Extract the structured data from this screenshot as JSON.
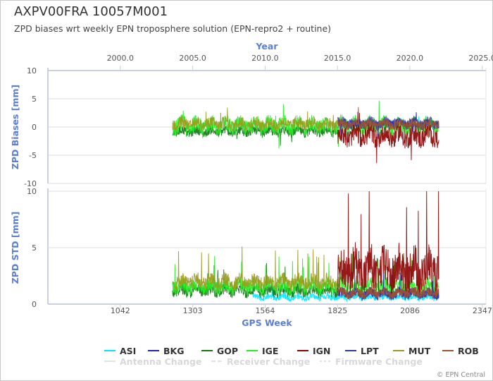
{
  "title": "AXPV00FRA 10057M001",
  "subtitle": "ZPD biases wrt weekly EPN troposphere solution (EPN-repro2 + routine)",
  "credit": "© EPN Central",
  "chart_data": [
    {
      "type": "line",
      "panel": "biases",
      "ylabel": "ZPD Biases [mm]",
      "ylim": [
        -10,
        10
      ],
      "yticks": [
        -10,
        -5,
        0,
        5,
        10
      ],
      "xlabel_top": "Year",
      "x_top_ticks": [
        "2000.0",
        "2005.0",
        "2010.0",
        "2015.0",
        "2020.0",
        "2025.0"
      ],
      "x_top_values": [
        2000.0,
        2005.0,
        2010.0,
        2015.0,
        2020.0,
        2025.0
      ],
      "xlim_gps_week": [
        781,
        2360
      ],
      "series": [
        {
          "name": "ASI",
          "color": "#00e5ff",
          "x_range": [
            1825,
            2190
          ],
          "mean": 0.4,
          "noise": 0.6
        },
        {
          "name": "BKG",
          "color": "#2222bb",
          "x_range": [
            1825,
            2190
          ],
          "mean": 0.6,
          "noise": 0.8
        },
        {
          "name": "GOP",
          "color": "#117711",
          "x_range": [
            1230,
            1825
          ],
          "mean": -0.8,
          "noise": 0.8
        },
        {
          "name": "IGE",
          "color": "#22ee22",
          "x_range": [
            1230,
            2190
          ],
          "mean": 0.3,
          "noise": 1.4
        },
        {
          "name": "IGN",
          "color": "#8b0000",
          "x_range": [
            1825,
            2190
          ],
          "mean": -1.5,
          "noise": 1.8
        },
        {
          "name": "LPT",
          "color": "#3333aa",
          "x_range": [
            1825,
            2190
          ],
          "mean": 0.7,
          "noise": 0.9
        },
        {
          "name": "MUT",
          "color": "#9a9a1a",
          "x_range": [
            1230,
            1825
          ],
          "mean": 0.6,
          "noise": 1.0
        },
        {
          "name": "ROB",
          "color": "#a0522d",
          "x_range": [
            1825,
            2190
          ],
          "mean": 0.5,
          "noise": 0.8
        }
      ]
    },
    {
      "type": "line",
      "panel": "std",
      "ylabel": "ZPD STD [mm]",
      "ylim": [
        0,
        10
      ],
      "yticks": [
        0,
        5,
        10
      ],
      "xlabel": "GPS Week",
      "x_ticks": [
        "1042",
        "1303",
        "1564",
        "1825",
        "2086",
        "2347"
      ],
      "x_values": [
        1042,
        1303,
        1564,
        1825,
        2086,
        2347
      ],
      "xlim_gps_week": [
        781,
        2360
      ],
      "series": [
        {
          "name": "ASI",
          "color": "#00e5ff",
          "x_range": [
            1520,
            2190
          ],
          "mean": 0.6,
          "noise": 0.25
        },
        {
          "name": "BKG",
          "color": "#2222bb",
          "x_range": [
            1825,
            2190
          ],
          "mean": 1.0,
          "noise": 0.4
        },
        {
          "name": "GOP",
          "color": "#117711",
          "x_range": [
            1230,
            1825
          ],
          "mean": 1.2,
          "noise": 0.5
        },
        {
          "name": "IGE",
          "color": "#22ee22",
          "x_range": [
            1230,
            2190
          ],
          "mean": 1.6,
          "noise": 0.6
        },
        {
          "name": "IGN",
          "color": "#8b0000",
          "x_range": [
            1825,
            2190
          ],
          "mean": 3.0,
          "noise": 1.8
        },
        {
          "name": "LPT",
          "color": "#3333aa",
          "x_range": [
            1825,
            2190
          ],
          "mean": 0.9,
          "noise": 0.4
        },
        {
          "name": "MUT",
          "color": "#9a9a1a",
          "x_range": [
            1230,
            1825
          ],
          "mean": 2.0,
          "noise": 0.6
        },
        {
          "name": "ROB",
          "color": "#a0522d",
          "x_range": [
            1825,
            2190
          ],
          "mean": 1.0,
          "noise": 0.4
        }
      ]
    }
  ],
  "legend": {
    "series": [
      "ASI",
      "BKG",
      "GOP",
      "IGE",
      "IGN",
      "LPT",
      "MUT",
      "ROB"
    ],
    "colors": [
      "#00e5ff",
      "#2222bb",
      "#117711",
      "#22ee22",
      "#8b0000",
      "#3333aa",
      "#9a9a1a",
      "#a0522d"
    ],
    "events": [
      "Antenna Change",
      "Receiver Change",
      "Firmware Change"
    ]
  }
}
